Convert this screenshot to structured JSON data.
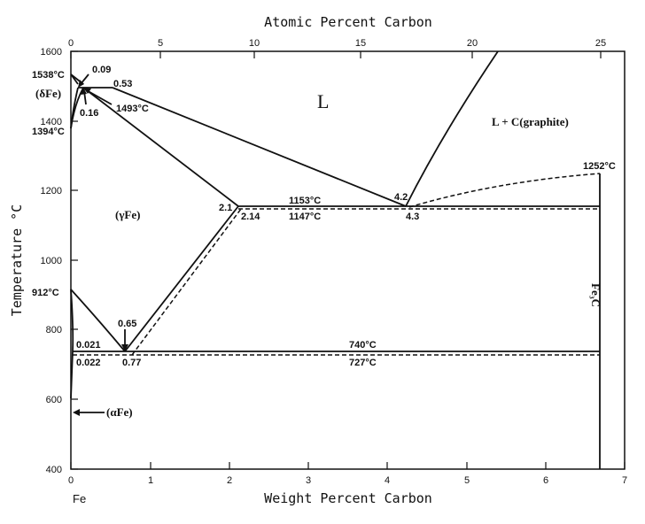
{
  "diagram": {
    "top_axis_title": "Atomic Percent Carbon",
    "bottom_axis_title": "Weight Percent Carbon",
    "y_axis_title": "Temperature °C",
    "bottom_ticks": [
      "0",
      "1",
      "2",
      "3",
      "4",
      "5",
      "6",
      "7"
    ],
    "top_ticks": [
      "0",
      "5",
      "10",
      "15",
      "20",
      "25"
    ],
    "left_ticks": [
      "400",
      "600",
      "800",
      "1000",
      "1200",
      "1400",
      "1600"
    ],
    "fe_label": "Fe",
    "phases": {
      "liquid": "L",
      "liquid_graphite": "L + C(graphite)",
      "delta": "(δFe)",
      "gamma": "(γFe)",
      "alpha": "(αFe)",
      "cementite": "Fe₃C"
    },
    "points": {
      "t1538": "1538°C",
      "c009": "0.09",
      "c053": "0.53",
      "c016": "0.16",
      "t1493": "1493°C",
      "t1394": "1394°C",
      "c21": "2.1",
      "c214": "2.14",
      "t1153": "1153°C",
      "t1147": "1147°C",
      "c42": "4.2",
      "c43": "4.3",
      "t1252": "1252°C",
      "t912": "912°C",
      "c065": "0.65",
      "c0021": "0.021",
      "c0022": "0.022",
      "c077": "0.77",
      "t740": "740°C",
      "t727": "727°C"
    }
  }
}
